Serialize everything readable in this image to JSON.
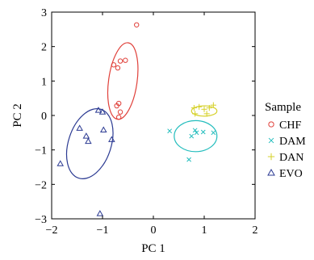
{
  "chart_data": {
    "type": "scatter",
    "title": "",
    "xlabel": "PC 1",
    "ylabel": "PC 2",
    "xlim": [
      -2,
      2
    ],
    "ylim": [
      -3,
      3
    ],
    "xticks": [
      -2,
      -1,
      0,
      1,
      2
    ],
    "yticks": [
      -3,
      -2,
      -1,
      0,
      1,
      2,
      3
    ],
    "xtick_labels": [
      "−2",
      "−1",
      "0",
      "1",
      "2"
    ],
    "ytick_labels": [
      "−3",
      "−2",
      "−1",
      "0",
      "1",
      "2",
      "3"
    ],
    "grid": false,
    "legend": {
      "title": "Sample",
      "placement": "right-outside"
    },
    "series": [
      {
        "name": "CHF",
        "marker": "circle",
        "color": "#e0403a",
        "points": [
          [
            -0.33,
            2.63
          ],
          [
            -0.78,
            1.47
          ],
          [
            -0.65,
            1.58
          ],
          [
            -0.55,
            1.6
          ],
          [
            -0.7,
            1.38
          ],
          [
            -0.68,
            0.35
          ],
          [
            -0.72,
            0.28
          ],
          [
            -0.65,
            0.1
          ],
          [
            -0.68,
            -0.05
          ]
        ],
        "ellipse": {
          "cx": -0.6,
          "cy": 1.0,
          "rx": 0.28,
          "ry": 1.12,
          "angle_deg": 8
        }
      },
      {
        "name": "DAM",
        "marker": "x",
        "color": "#23bdbd",
        "points": [
          [
            0.32,
            -0.45
          ],
          [
            0.75,
            -0.6
          ],
          [
            0.82,
            -0.43
          ],
          [
            0.85,
            -0.5
          ],
          [
            0.98,
            -0.48
          ],
          [
            1.18,
            -0.5
          ],
          [
            0.7,
            -1.28
          ]
        ],
        "ellipse": {
          "cx": 0.83,
          "cy": -0.6,
          "rx": 0.42,
          "ry": 0.45,
          "angle_deg": 0
        }
      },
      {
        "name": "DAN",
        "marker": "plus",
        "color": "#d6d12a",
        "points": [
          [
            0.8,
            0.22
          ],
          [
            0.9,
            0.25
          ],
          [
            1.0,
            0.18
          ],
          [
            1.1,
            0.22
          ],
          [
            1.18,
            0.3
          ],
          [
            0.82,
            0.05
          ],
          [
            1.05,
            0.05
          ]
        ],
        "ellipse": {
          "cx": 1.0,
          "cy": 0.13,
          "rx": 0.25,
          "ry": 0.15,
          "angle_deg": 0
        }
      },
      {
        "name": "EVO",
        "marker": "triangle",
        "color": "#2b3a92",
        "points": [
          [
            -1.83,
            -1.4
          ],
          [
            -1.45,
            -0.37
          ],
          [
            -1.32,
            -0.6
          ],
          [
            -1.28,
            -0.75
          ],
          [
            -1.08,
            0.15
          ],
          [
            -1.0,
            0.1
          ],
          [
            -0.98,
            -0.42
          ],
          [
            -0.82,
            -0.7
          ],
          [
            -1.05,
            -2.85
          ]
        ],
        "ellipse": {
          "cx": -1.25,
          "cy": -0.82,
          "rx": 0.42,
          "ry": 1.05,
          "angle_deg": 18
        }
      }
    ]
  }
}
